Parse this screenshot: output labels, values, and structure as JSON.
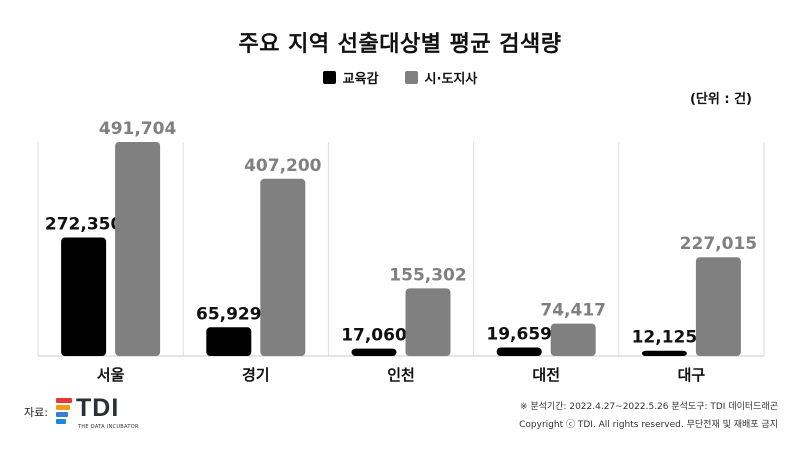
{
  "title": "주요 지역 선출대상별 평균 검색량",
  "unit": "(단위 : 건)",
  "legend": [
    {
      "label": "교육감",
      "color": "#000000"
    },
    {
      "label": "시·도지사",
      "color": "#808080"
    }
  ],
  "chart_data": {
    "type": "bar",
    "title": "주요 지역 선출대상별 평균 검색량",
    "categories": [
      "서울",
      "경기",
      "인천",
      "대전",
      "대구"
    ],
    "series": [
      {
        "name": "교육감",
        "values": [
          272350,
          65929,
          17060,
          19659,
          12125
        ],
        "color": "#000000",
        "label_color": "#111111"
      },
      {
        "name": "시·도지사",
        "values": [
          491704,
          407200,
          155302,
          74417,
          227015
        ],
        "color": "#808080",
        "label_color": "#808080"
      }
    ],
    "value_labels": [
      [
        "272,350",
        "65,929",
        "17,060",
        "19,659",
        "12,125"
      ],
      [
        "491,704",
        "407,200",
        "155,302",
        "74,417",
        "227,015"
      ]
    ],
    "ylim": [
      0,
      491704
    ],
    "grid": false,
    "legend_position": "top-center"
  },
  "source": {
    "label": "자료:",
    "logo_text": "TDI",
    "logo_subtext": "THE DATA INCUBATOR",
    "logo_colors": [
      "#e53935",
      "#f39c12",
      "#3a7bd5",
      "#1e88e5"
    ]
  },
  "footnote": {
    "line1": "※ 분석기간: 2022.4.27~2022.5.26  분석도구: TDI 데이터드래곤",
    "line2": "Copyright ⓒ TDI. All rights reserved. 무단전재 및 재배포 금지"
  }
}
